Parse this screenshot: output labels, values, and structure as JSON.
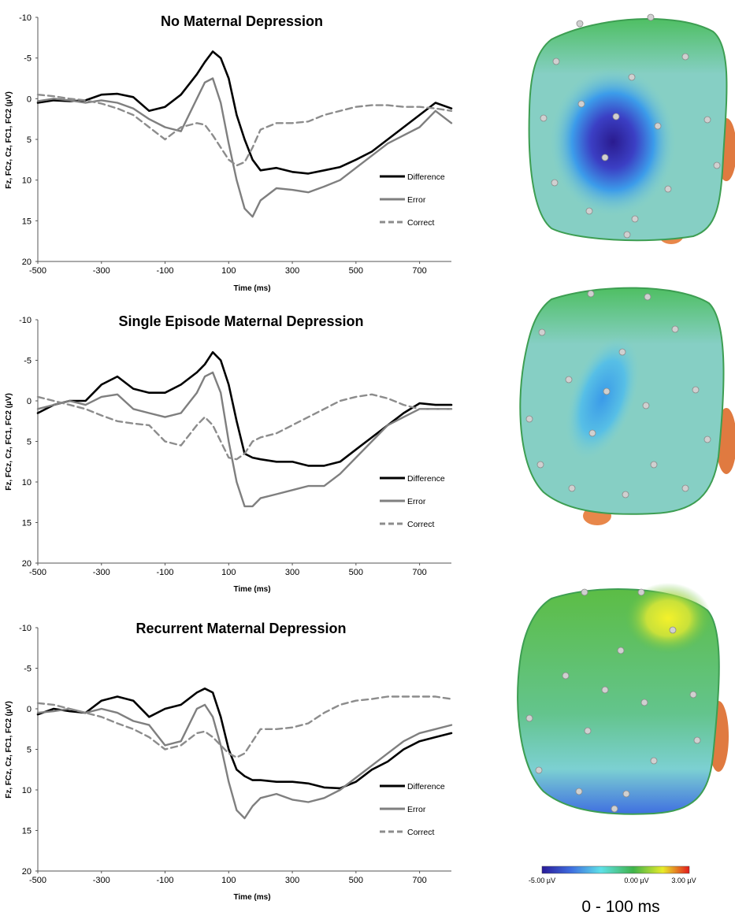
{
  "chart_data": [
    {
      "type": "line",
      "title": "No Maternal Depression",
      "xlabel": "Time (ms)",
      "ylabel": "Fz, FCz, Cz, FC1, FC2 (µV)",
      "xlim": [
        -500,
        800
      ],
      "ylim": [
        20,
        -10
      ],
      "y_inverted": true,
      "xticks": [
        "-500",
        "-300",
        "-100",
        "100",
        "300",
        "500",
        "700"
      ],
      "yticks": [
        "-10",
        "-5",
        "0",
        "5",
        "10",
        "15",
        "20"
      ],
      "legend_position": "bottom-right",
      "series": [
        {
          "name": "Difference",
          "color": "#000000",
          "dash": "solid",
          "x": [
            -500,
            -450,
            -400,
            -350,
            -300,
            -250,
            -200,
            -150,
            -100,
            -50,
            0,
            25,
            50,
            75,
            100,
            125,
            150,
            175,
            200,
            250,
            300,
            350,
            400,
            450,
            500,
            550,
            600,
            650,
            700,
            750,
            800
          ],
          "y": [
            0.5,
            0.2,
            0.3,
            0.2,
            -0.5,
            -0.6,
            -0.2,
            1.5,
            1.0,
            -0.5,
            -3.0,
            -4.5,
            -5.8,
            -5.0,
            -2.5,
            2.0,
            5.0,
            7.5,
            8.8,
            8.5,
            9.0,
            9.2,
            8.8,
            8.4,
            7.5,
            6.5,
            5.0,
            3.5,
            2.0,
            0.5,
            1.2
          ]
        },
        {
          "name": "Error",
          "color": "#7f7f7f",
          "dash": "solid",
          "x": [
            -500,
            -450,
            -400,
            -350,
            -300,
            -250,
            -200,
            -150,
            -100,
            -50,
            0,
            25,
            50,
            75,
            100,
            125,
            150,
            175,
            200,
            250,
            300,
            350,
            400,
            450,
            500,
            550,
            600,
            650,
            700,
            750,
            800
          ],
          "y": [
            0.3,
            0.0,
            0.2,
            0.5,
            0.2,
            0.5,
            1.2,
            2.5,
            3.5,
            4.0,
            0.0,
            -2.0,
            -2.5,
            0.5,
            5.5,
            10.0,
            13.5,
            14.5,
            12.5,
            11.0,
            11.2,
            11.5,
            10.8,
            10.0,
            8.5,
            7.0,
            5.5,
            4.5,
            3.5,
            1.5,
            3.0
          ]
        },
        {
          "name": "Correct",
          "color": "#8c8c8c",
          "dash": "dashed",
          "x": [
            -500,
            -450,
            -400,
            -350,
            -300,
            -250,
            -200,
            -150,
            -100,
            -50,
            0,
            25,
            50,
            75,
            100,
            125,
            150,
            175,
            200,
            250,
            300,
            350,
            400,
            450,
            500,
            550,
            600,
            650,
            700,
            750,
            800
          ],
          "y": [
            -0.5,
            -0.3,
            0.0,
            0.2,
            0.6,
            1.2,
            2.0,
            3.5,
            5.0,
            3.5,
            3.0,
            3.2,
            4.5,
            6.0,
            7.5,
            8.2,
            7.8,
            6.0,
            3.8,
            3.0,
            3.0,
            2.8,
            2.0,
            1.5,
            1.0,
            0.8,
            0.8,
            1.0,
            1.0,
            1.2,
            1.5
          ]
        }
      ]
    },
    {
      "type": "line",
      "title": "Single Episode Maternal Depression",
      "xlabel": "Time (ms)",
      "ylabel": "Fz, FCz, Cz, FC1, FC2 (µV)",
      "xlim": [
        -500,
        800
      ],
      "ylim": [
        20,
        -10
      ],
      "y_inverted": true,
      "xticks": [
        "-500",
        "-300",
        "-100",
        "100",
        "300",
        "500",
        "700"
      ],
      "yticks": [
        "-10",
        "-5",
        "0",
        "5",
        "10",
        "15",
        "20"
      ],
      "legend_position": "bottom-right",
      "series": [
        {
          "name": "Difference",
          "color": "#000000",
          "dash": "solid",
          "x": [
            -500,
            -450,
            -400,
            -350,
            -300,
            -250,
            -200,
            -150,
            -100,
            -50,
            0,
            25,
            50,
            75,
            100,
            125,
            150,
            175,
            200,
            250,
            300,
            350,
            400,
            450,
            500,
            550,
            600,
            650,
            700,
            750,
            800
          ],
          "y": [
            1.5,
            0.5,
            0.0,
            0.0,
            -2.0,
            -3.0,
            -1.5,
            -1.0,
            -1.0,
            -2.0,
            -3.5,
            -4.5,
            -6.0,
            -5.0,
            -2.0,
            2.5,
            6.5,
            7.0,
            7.2,
            7.5,
            7.5,
            8.0,
            8.0,
            7.5,
            6.0,
            4.5,
            3.0,
            1.5,
            0.3,
            0.5,
            0.5
          ]
        },
        {
          "name": "Error",
          "color": "#7f7f7f",
          "dash": "solid",
          "x": [
            -500,
            -450,
            -400,
            -350,
            -300,
            -250,
            -200,
            -150,
            -100,
            -50,
            0,
            25,
            50,
            75,
            100,
            125,
            150,
            175,
            200,
            250,
            300,
            350,
            400,
            450,
            500,
            550,
            600,
            650,
            700,
            750,
            800
          ],
          "y": [
            1.0,
            0.5,
            0.0,
            0.5,
            -0.5,
            -0.8,
            1.0,
            1.5,
            2.0,
            1.5,
            -1.0,
            -3.0,
            -3.5,
            -1.0,
            5.0,
            10.0,
            13.0,
            13.0,
            12.0,
            11.5,
            11.0,
            10.5,
            10.5,
            9.0,
            7.0,
            5.0,
            3.0,
            2.0,
            1.0,
            1.0,
            1.0
          ]
        },
        {
          "name": "Correct",
          "color": "#8c8c8c",
          "dash": "dashed",
          "x": [
            -500,
            -450,
            -400,
            -350,
            -300,
            -250,
            -200,
            -150,
            -100,
            -50,
            0,
            25,
            50,
            75,
            100,
            125,
            150,
            175,
            200,
            250,
            300,
            350,
            400,
            450,
            500,
            550,
            600,
            650,
            700,
            750,
            800
          ],
          "y": [
            -0.5,
            0.0,
            0.5,
            1.0,
            1.8,
            2.5,
            2.8,
            3.0,
            5.0,
            5.5,
            3.0,
            2.0,
            3.0,
            5.0,
            7.0,
            7.2,
            6.5,
            5.0,
            4.5,
            4.0,
            3.0,
            2.0,
            1.0,
            0.0,
            -0.5,
            -0.8,
            -0.3,
            0.5,
            1.0,
            1.0,
            1.0
          ]
        }
      ]
    },
    {
      "type": "line",
      "title": "Recurrent Maternal Depression",
      "xlabel": "Time (ms)",
      "ylabel": "Fz, FCz, Cz, FC1, FC2 (µV)",
      "xlim": [
        -500,
        800
      ],
      "ylim": [
        20,
        -10
      ],
      "y_inverted": true,
      "xticks": [
        "-500",
        "-300",
        "-100",
        "100",
        "300",
        "500",
        "700"
      ],
      "yticks": [
        "-10",
        "-5",
        "0",
        "5",
        "10",
        "15",
        "20"
      ],
      "legend_position": "bottom-right",
      "series": [
        {
          "name": "Difference",
          "color": "#000000",
          "dash": "solid",
          "x": [
            -500,
            -450,
            -400,
            -350,
            -300,
            -250,
            -200,
            -150,
            -100,
            -50,
            0,
            25,
            50,
            75,
            100,
            125,
            150,
            175,
            200,
            250,
            300,
            350,
            400,
            450,
            500,
            550,
            600,
            650,
            700,
            750,
            800
          ],
          "y": [
            0.7,
            0.0,
            0.3,
            0.5,
            -1.0,
            -1.5,
            -1.0,
            1.0,
            0.0,
            -0.5,
            -2.0,
            -2.5,
            -2.0,
            1.0,
            5.0,
            7.5,
            8.3,
            8.8,
            8.8,
            9.0,
            9.0,
            9.2,
            9.7,
            9.8,
            9.0,
            7.5,
            6.5,
            5.0,
            4.0,
            3.5,
            3.0
          ]
        },
        {
          "name": "Error",
          "color": "#7f7f7f",
          "dash": "solid",
          "x": [
            -500,
            -450,
            -400,
            -350,
            -300,
            -250,
            -200,
            -150,
            -100,
            -50,
            0,
            25,
            50,
            75,
            100,
            125,
            150,
            175,
            200,
            250,
            300,
            350,
            400,
            450,
            500,
            550,
            600,
            650,
            700,
            750,
            800
          ],
          "y": [
            0.5,
            0.3,
            0.0,
            0.5,
            0.0,
            0.5,
            1.5,
            2.0,
            4.5,
            4.0,
            0.0,
            -0.5,
            1.0,
            4.5,
            9.0,
            12.5,
            13.5,
            12.0,
            11.0,
            10.5,
            11.2,
            11.5,
            11.0,
            10.0,
            8.5,
            7.0,
            5.5,
            4.0,
            3.0,
            2.5,
            2.0
          ]
        },
        {
          "name": "Correct",
          "color": "#8c8c8c",
          "dash": "dashed",
          "x": [
            -500,
            -450,
            -400,
            -350,
            -300,
            -250,
            -200,
            -150,
            -100,
            -50,
            0,
            25,
            50,
            75,
            100,
            125,
            150,
            175,
            200,
            250,
            300,
            350,
            400,
            450,
            500,
            550,
            600,
            650,
            700,
            750,
            800
          ],
          "y": [
            -0.7,
            -0.5,
            0.0,
            0.5,
            1.0,
            1.8,
            2.5,
            3.5,
            5.0,
            4.5,
            3.0,
            2.8,
            3.5,
            4.5,
            5.5,
            6.0,
            5.5,
            4.0,
            2.5,
            2.5,
            2.3,
            1.8,
            0.5,
            -0.5,
            -1.0,
            -1.2,
            -1.5,
            -1.5,
            -1.5,
            -1.5,
            -1.2
          ]
        }
      ]
    }
  ],
  "topomaps": [
    {
      "id": "no-maternal-depression",
      "min_uv": -5.0,
      "focus": "central-left"
    },
    {
      "id": "single-episode",
      "min_uv": -2.5,
      "focus": "central-left"
    },
    {
      "id": "recurrent",
      "min_uv": -1.0,
      "max_uv": 1.5,
      "focus": "frontal-right-positive"
    }
  ],
  "colorbar": {
    "labels": [
      "-5.00 µV",
      "0.00 µV",
      "3.00 µV"
    ],
    "colors": [
      "#2a1b9a",
      "#3f6fe0",
      "#5ee1e8",
      "#7dd3c2",
      "#3fb34a",
      "#e8ec2a",
      "#e31a1c"
    ]
  },
  "caption": "0 - 100 ms"
}
